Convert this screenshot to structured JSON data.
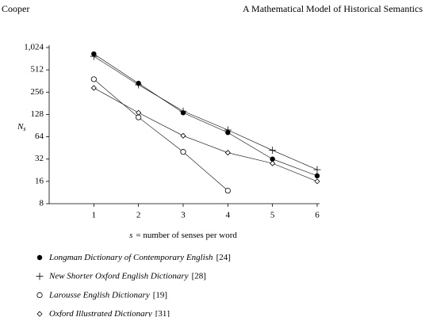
{
  "header": {
    "left": "Cooper",
    "right": "A Mathematical Model of Historical Semantics"
  },
  "chart_data": {
    "type": "line",
    "log_y": true,
    "log_base": 2,
    "y_label": "N",
    "y_label_sub": "s",
    "x_label_var": "s",
    "x_label_rest": "= number of senses per word",
    "x": [
      1,
      2,
      3,
      4,
      5,
      6
    ],
    "xlim": [
      0,
      6
    ],
    "xticks": [
      1,
      2,
      3,
      4,
      5,
      6
    ],
    "ylim": [
      8,
      1024
    ],
    "yticks": [
      8,
      16,
      32,
      64,
      128,
      256,
      512,
      {
        "value": 1024,
        "label": "1,024"
      }
    ],
    "series": [
      {
        "name": "Longman Dictionary of Contemporary English",
        "count_label": "[24]",
        "marker": "filled-circle",
        "color": "#000000",
        "values": [
          840,
          337,
          135,
          73,
          32,
          19
        ]
      },
      {
        "name": "New Shorter Oxford English Dictionary",
        "count_label": "[28]",
        "marker": "plus",
        "color": "#000000",
        "values": [
          780,
          322,
          142,
          79,
          42,
          23
        ]
      },
      {
        "name": "Larousse English Dictionary",
        "count_label": "[19]",
        "marker": "open-circle",
        "color": "#000000",
        "values": [
          383,
          117,
          40,
          12,
          null,
          null
        ]
      },
      {
        "name": "Oxford Illustrated Dictionary",
        "count_label": "[31]",
        "marker": "diamond",
        "color": "#000000",
        "values": [
          292,
          135,
          66,
          39,
          28,
          16
        ]
      }
    ]
  }
}
